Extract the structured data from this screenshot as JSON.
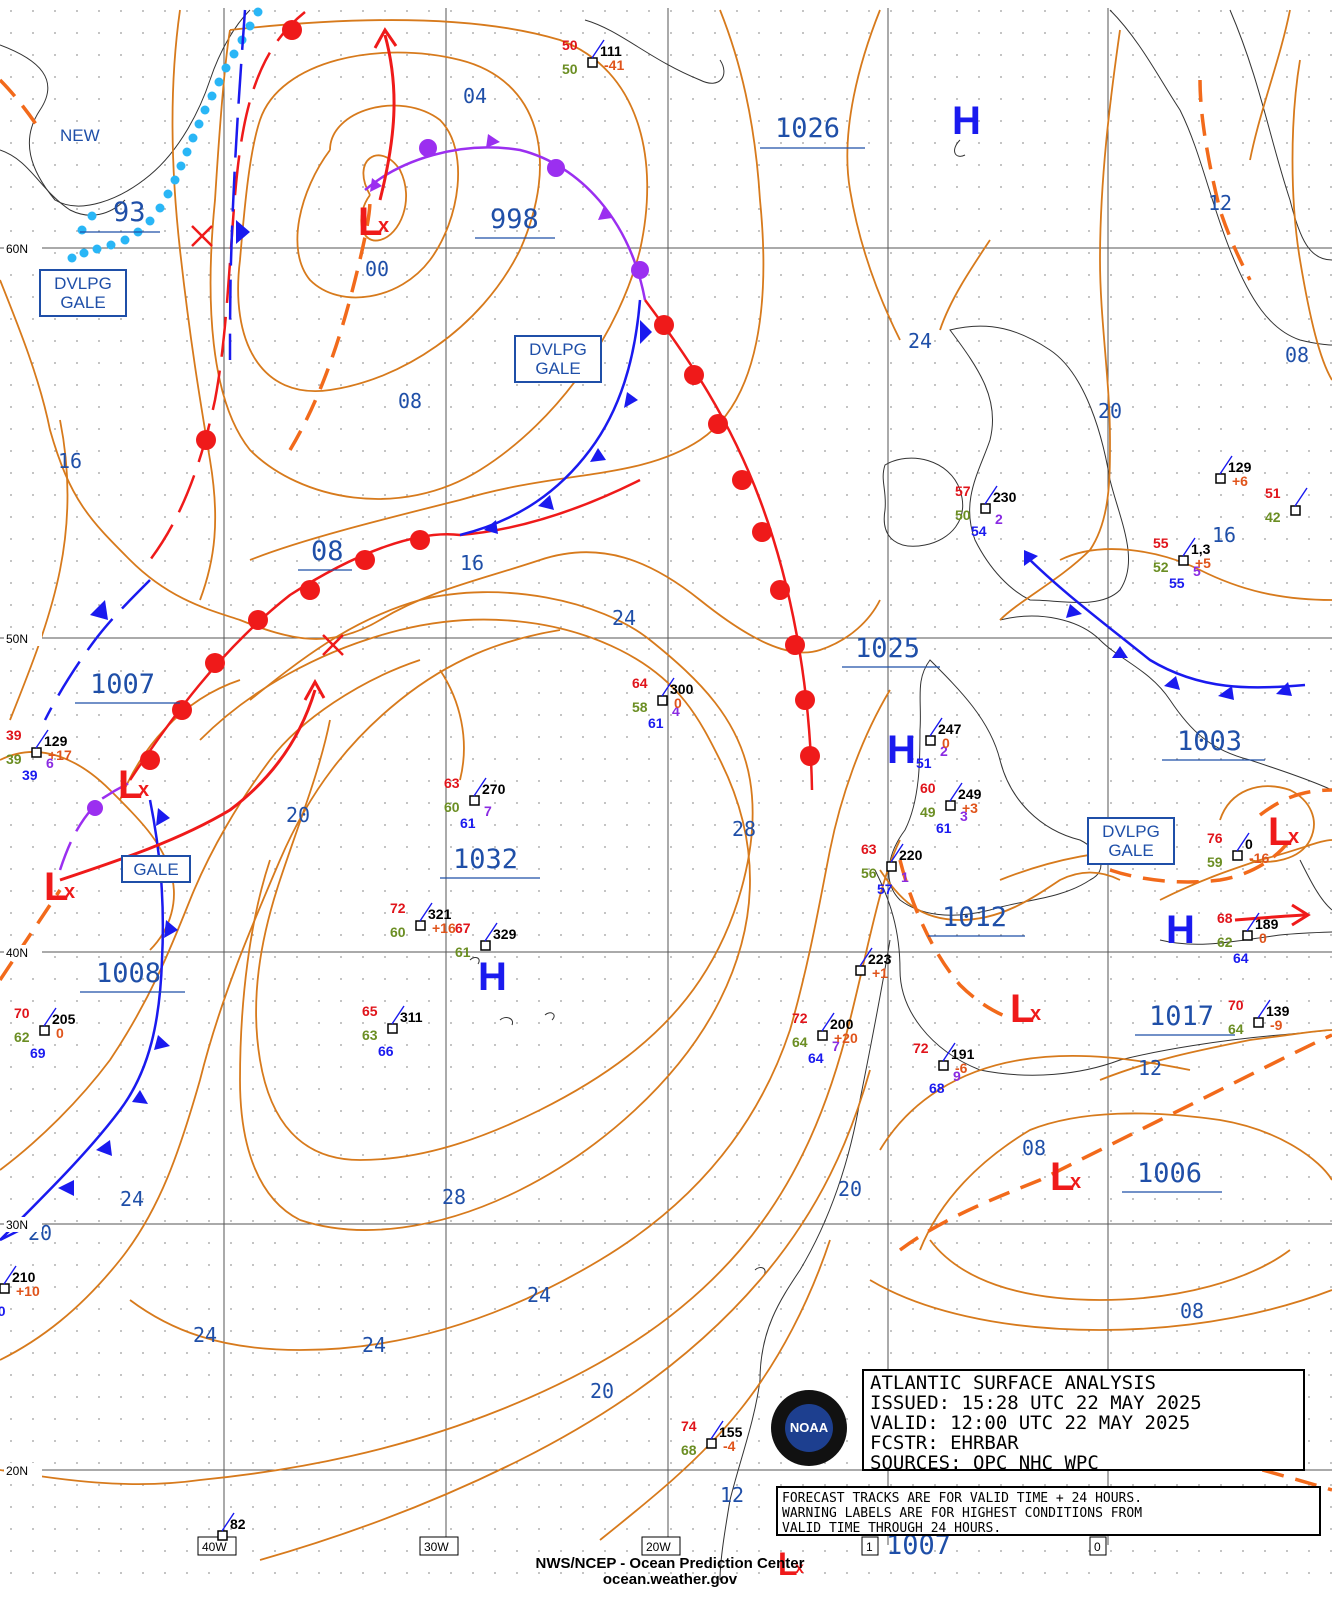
{
  "map_title": "ATLANTIC SURFACE ANALYSIS",
  "info_box": {
    "title": "ATLANTIC SURFACE ANALYSIS",
    "issued": "ISSUED: 15:28 UTC 22 MAY 2025",
    "valid": "VALID:  12:00 UTC 22 MAY 2025",
    "forecaster": "FCSTR:  EHRBAR",
    "sources": "SOURCES: OPC NHC WPC"
  },
  "note": {
    "line1": "FORECAST TRACKS ARE FOR VALID TIME + 24 HOURS.",
    "line2": "WARNING LABELS ARE FOR HIGHEST CONDITIONS FROM",
    "line3": "VALID TIME THROUGH 24 HOURS."
  },
  "credit": {
    "line1": "NWS/NCEP - Ocean Prediction Center",
    "line2": "ocean.weather.gov"
  },
  "logo_text": "NOAA",
  "latitude_labels": [
    "60N",
    "50N",
    "40N",
    "30N",
    "20N"
  ],
  "longitude_labels": [
    "40W",
    "30W",
    "20W",
    "1",
    "0"
  ],
  "pressure_systems": [
    {
      "type": "L",
      "pressure": "93"
    },
    {
      "type": "L",
      "pressure": "998"
    },
    {
      "type": "L",
      "pressure": "1007"
    },
    {
      "type": "L",
      "pressure": "1008"
    },
    {
      "type": "H",
      "pressure": "1026"
    },
    {
      "type": "H",
      "pressure": "1032"
    },
    {
      "type": "H",
      "pressure": "1025"
    },
    {
      "type": "L",
      "pressure": "1012"
    },
    {
      "type": "L",
      "pressure": "1003"
    },
    {
      "type": "H",
      "pressure": "1017"
    },
    {
      "type": "L",
      "pressure": "1006"
    },
    {
      "type": "L",
      "pressure": "1007"
    },
    {
      "type": "",
      "pressure": "08"
    }
  ],
  "isobar_labels": [
    "04",
    "00",
    "08",
    "16",
    "16",
    "20",
    "24",
    "28",
    "20",
    "24",
    "28",
    "24",
    "24",
    "24",
    "20",
    "12",
    "20",
    "20",
    "24",
    "20",
    "08",
    "12",
    "12",
    "08",
    "16",
    "08"
  ],
  "warning_labels": [
    "DVLPG GALE",
    "DVLPG GALE",
    "GALE",
    "DVLPG GALE"
  ],
  "place_labels": [
    "NEW"
  ],
  "stations": [
    {
      "top": "111",
      "left": "50",
      "leftb": "50",
      "sub": "-41"
    },
    {
      "top": "230",
      "left": "57",
      "leftb": "50",
      "bottom": "54",
      "extra": "2"
    },
    {
      "top": "129",
      "left": "",
      "leftb": "",
      "sub": "+6"
    },
    {
      "top": "",
      "left": "51",
      "leftb": "42"
    },
    {
      "top": "1,3",
      "left": "55",
      "leftb": "52",
      "bottom": "55",
      "sub": "+5",
      "extra": "5"
    },
    {
      "top": "129",
      "left": "39",
      "leftb": "39",
      "bottom": "39",
      "sub": "+17",
      "extra": "6"
    },
    {
      "top": "300",
      "left": "64",
      "leftb": "58",
      "bottom": "61",
      "sub": "0",
      "extra": "4"
    },
    {
      "top": "247",
      "left": "",
      "leftb": "",
      "bottom": "51",
      "sub": "0",
      "extra": "2"
    },
    {
      "top": "249",
      "left": "60",
      "leftb": "49",
      "bottom": "61",
      "sub": "+3",
      "extra": "3"
    },
    {
      "top": "270",
      "left": "63",
      "leftb": "60",
      "bottom": "61",
      "extra": "7"
    },
    {
      "top": "220",
      "left": "63",
      "leftb": "56",
      "bottom": "57",
      "extra": "1"
    },
    {
      "top": "321",
      "left": "72",
      "leftb": "60",
      "sub": "+16"
    },
    {
      "top": "329",
      "left": "67",
      "leftb": "61"
    },
    {
      "top": "223",
      "sub": "+1"
    },
    {
      "top": "205",
      "left": "70",
      "leftb": "62",
      "bottom": "69",
      "sub": "0"
    },
    {
      "top": "311",
      "left": "65",
      "leftb": "63",
      "bottom": "66"
    },
    {
      "top": "200",
      "left": "72",
      "leftb": "64",
      "bottom": "64",
      "sub": "+20",
      "extra": "7"
    },
    {
      "top": "191",
      "left": "72",
      "bottom": "68",
      "sub": "-6",
      "extra": "9"
    },
    {
      "top": "0",
      "left": "76",
      "leftb": "59",
      "sub": "-16"
    },
    {
      "top": "189",
      "left": "68",
      "leftb": "62",
      "bottom": "64",
      "sub": "0"
    },
    {
      "top": "139",
      "left": "70",
      "leftb": "64",
      "sub": "-9"
    },
    {
      "top": "210",
      "bottom": "10",
      "sub": "+10"
    },
    {
      "top": "155",
      "left": "74",
      "leftb": "68",
      "sub": "-4"
    },
    {
      "top": "82"
    }
  ],
  "colors": {
    "isobar": "#d77a1c",
    "cold_front": "#1a1aef",
    "warm_front": "#ef1a1a",
    "occluded_front": "#9b2ff0",
    "stationary_dots": "#29b6f6",
    "label_blue": "#1f4fa8",
    "grid": "#666666",
    "coast": "#333333"
  }
}
